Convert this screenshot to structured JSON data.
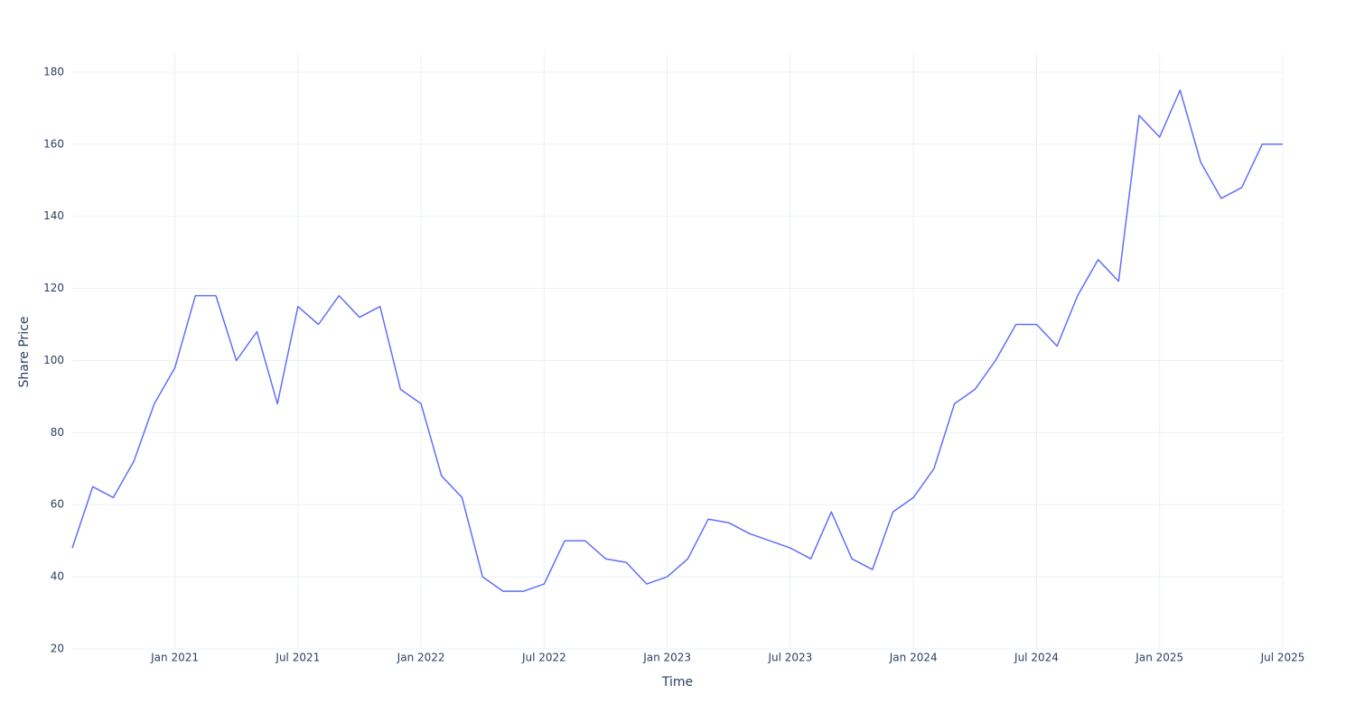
{
  "chart_data": {
    "type": "line",
    "x_label": "Time",
    "y_label": "Share Price",
    "x": [
      "2020-08",
      "2020-09",
      "2020-10",
      "2020-11",
      "2020-12",
      "2021-01",
      "2021-02",
      "2021-03",
      "2021-04",
      "2021-05",
      "2021-06",
      "2021-07",
      "2021-08",
      "2021-09",
      "2021-10",
      "2021-11",
      "2021-12",
      "2022-01",
      "2022-02",
      "2022-03",
      "2022-04",
      "2022-05",
      "2022-06",
      "2022-07",
      "2022-08",
      "2022-09",
      "2022-10",
      "2022-11",
      "2022-12",
      "2023-01",
      "2023-02",
      "2023-03",
      "2023-04",
      "2023-05",
      "2023-06",
      "2023-07",
      "2023-08",
      "2023-09",
      "2023-10",
      "2023-11",
      "2023-12",
      "2024-01",
      "2024-02",
      "2024-03",
      "2024-04",
      "2024-05",
      "2024-06",
      "2024-07",
      "2024-08",
      "2024-09",
      "2024-10",
      "2024-11",
      "2024-12",
      "2025-01",
      "2025-02",
      "2025-03",
      "2025-04",
      "2025-05",
      "2025-06",
      "2025-07"
    ],
    "series": [
      {
        "name": "Share Price",
        "color": "#636efa",
        "values": [
          48,
          65,
          62,
          72,
          88,
          98,
          118,
          118,
          100,
          108,
          88,
          115,
          110,
          118,
          112,
          115,
          92,
          88,
          68,
          62,
          40,
          36,
          36,
          38,
          50,
          50,
          45,
          44,
          38,
          40,
          45,
          56,
          55,
          52,
          50,
          48,
          45,
          58,
          45,
          42,
          58,
          62,
          70,
          88,
          92,
          100,
          110,
          110,
          104,
          118,
          128,
          122,
          168,
          162,
          175,
          155,
          145,
          148,
          160,
          160
        ]
      }
    ],
    "xlim": [
      "2020-08",
      "2025-07"
    ],
    "xticks": [
      {
        "value": "2021-01",
        "label": "Jan 2021"
      },
      {
        "value": "2021-07",
        "label": "Jul 2021"
      },
      {
        "value": "2022-01",
        "label": "Jan 2022"
      },
      {
        "value": "2022-07",
        "label": "Jul 2022"
      },
      {
        "value": "2023-01",
        "label": "Jan 2023"
      },
      {
        "value": "2023-07",
        "label": "Jul 2023"
      },
      {
        "value": "2024-01",
        "label": "Jan 2024"
      },
      {
        "value": "2024-07",
        "label": "Jul 2024"
      },
      {
        "value": "2025-01",
        "label": "Jan 2025"
      },
      {
        "value": "2025-07",
        "label": "Jul 2025"
      }
    ],
    "ylim": [
      20,
      185
    ],
    "yticks": [
      20,
      40,
      60,
      80,
      100,
      120,
      140,
      160,
      180
    ],
    "grid": true
  }
}
